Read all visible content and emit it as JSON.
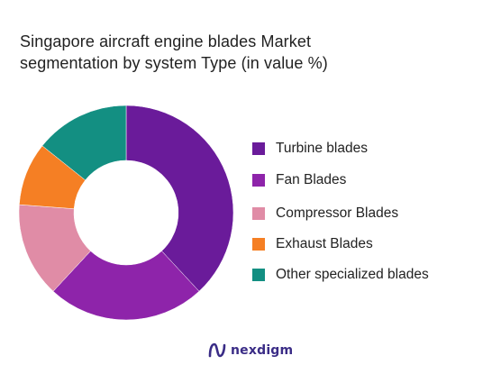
{
  "title_lines": [
    "Singapore aircraft engine blades Market",
    "segmentation by system Type (in value %)"
  ],
  "chart_data": {
    "type": "pie",
    "donut": true,
    "title": "Singapore aircraft engine blades Market segmentation by system Type (in value %)",
    "categories": [
      "Turbine blades",
      "Fan Blades",
      "Compressor Blades",
      "Exhaust Blades",
      "Other specialized blades"
    ],
    "values": [
      40,
      25,
      15,
      10,
      15
    ],
    "colors": [
      "#6a1b9a",
      "#8e24aa",
      "#e08ca6",
      "#f57f24",
      "#138f82"
    ],
    "legend_position": "right"
  },
  "legend": [
    {
      "label": "Turbine blades"
    },
    {
      "label": "Fan Blades"
    },
    {
      "label": "Compressor Blades"
    },
    {
      "label": "Exhaust Blades"
    },
    {
      "label": "Other specialized blades"
    }
  ],
  "brand": {
    "name": "nexdigm",
    "icon": "nexdigm-logo-icon",
    "color": "#3a2c86"
  }
}
